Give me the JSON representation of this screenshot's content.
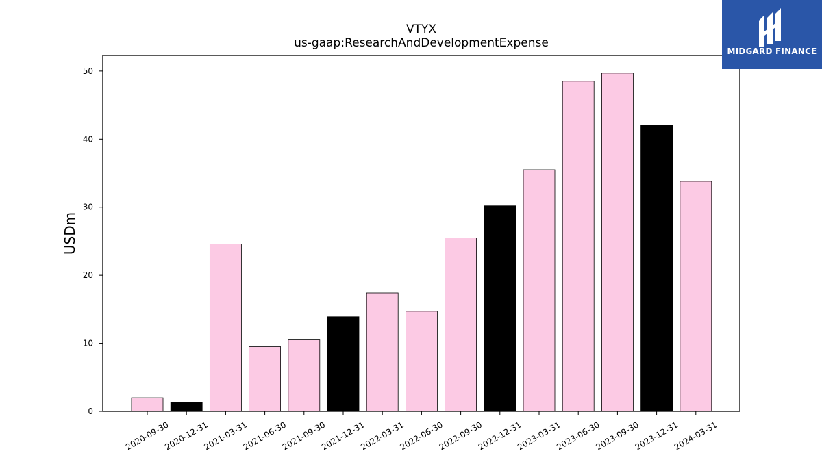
{
  "brand": {
    "name": "MIDGARD FINANCE",
    "background_color": "#2a56a8",
    "text_color": "#ffffff"
  },
  "chart_data": {
    "type": "bar",
    "title": "VTYX",
    "subtitle": "us-gaap:ResearchAndDevelopmentExpense",
    "xlabel": "",
    "ylabel": "USDm",
    "ylim": [
      0,
      52.3
    ],
    "yticks": [
      0,
      10,
      20,
      30,
      40,
      50
    ],
    "grid": false,
    "categories": [
      "2020-09-30",
      "2020-12-31",
      "2021-03-31",
      "2021-06-30",
      "2021-09-30",
      "2021-12-31",
      "2022-03-31",
      "2022-06-30",
      "2022-09-30",
      "2022-12-31",
      "2023-03-31",
      "2023-06-30",
      "2023-09-30",
      "2023-12-31",
      "2024-03-31"
    ],
    "values": [
      2.0,
      1.3,
      24.6,
      9.5,
      10.5,
      13.9,
      17.4,
      14.7,
      25.5,
      30.2,
      35.5,
      48.5,
      49.7,
      42.0,
      33.8
    ],
    "bar_colors": [
      "#fccae4",
      "#000000",
      "#fccae4",
      "#fccae4",
      "#fccae4",
      "#000000",
      "#fccae4",
      "#fccae4",
      "#fccae4",
      "#000000",
      "#fccae4",
      "#fccae4",
      "#fccae4",
      "#000000",
      "#fccae4"
    ],
    "edge_color": "#000000"
  }
}
